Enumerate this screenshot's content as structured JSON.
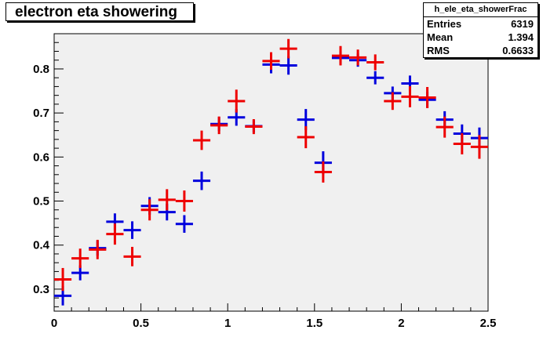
{
  "title": "electron eta showering",
  "stats": {
    "name": "h_ele_eta_showerFrac",
    "rows": [
      {
        "label": "Entries",
        "value": "6319"
      },
      {
        "label": "Mean",
        "value": "1.394"
      },
      {
        "label": "RMS",
        "value": "0.6633"
      }
    ]
  },
  "colors": {
    "frame_bg": "#f0f0f0",
    "series_blue": "#0000dd",
    "series_red": "#ee0000"
  },
  "chart_data": {
    "type": "scatter",
    "title": "electron eta showering",
    "xlabel": "",
    "ylabel": "",
    "xlim": [
      0,
      2.5
    ],
    "ylim": [
      0.25,
      0.88
    ],
    "x_ticks": [
      0,
      0.5,
      1,
      1.5,
      2,
      2.5
    ],
    "x_tick_labels": [
      "0",
      "0.5",
      "1",
      "1.5",
      "2",
      "2.5"
    ],
    "y_ticks": [
      0.3,
      0.4,
      0.5,
      0.6,
      0.7,
      0.8
    ],
    "y_tick_labels": [
      "0.3",
      "0.4",
      "0.5",
      "0.6",
      "0.7",
      "0.8"
    ],
    "grid": false,
    "x_half_width": 0.05,
    "series": [
      {
        "color": "#0000dd",
        "x": [
          0.05,
          0.15,
          0.25,
          0.35,
          0.45,
          0.55,
          0.65,
          0.75,
          0.85,
          0.95,
          1.05,
          1.15,
          1.25,
          1.35,
          1.45,
          1.55,
          1.65,
          1.75,
          1.85,
          1.95,
          2.05,
          2.15,
          2.25,
          2.35,
          2.45
        ],
        "y": [
          0.285,
          0.337,
          0.393,
          0.453,
          0.434,
          0.489,
          0.475,
          0.448,
          0.546,
          0.675,
          0.69,
          0.67,
          0.81,
          0.808,
          0.685,
          0.587,
          0.825,
          0.82,
          0.78,
          0.745,
          0.767,
          0.73,
          0.685,
          0.653,
          0.643
        ],
        "yerr": [
          0.022,
          0.017,
          0.017,
          0.019,
          0.02,
          0.02,
          0.019,
          0.02,
          0.021,
          0.016,
          0.019,
          0.014,
          0.02,
          0.021,
          0.024,
          0.026,
          0.015,
          0.015,
          0.015,
          0.015,
          0.018,
          0.018,
          0.019,
          0.021,
          0.024
        ]
      },
      {
        "color": "#ee0000",
        "x": [
          0.05,
          0.15,
          0.25,
          0.35,
          0.45,
          0.55,
          0.65,
          0.75,
          0.85,
          0.95,
          1.05,
          1.15,
          1.25,
          1.35,
          1.45,
          1.55,
          1.65,
          1.75,
          1.85,
          1.95,
          2.05,
          2.15,
          2.25,
          2.35,
          2.45
        ],
        "y": [
          0.322,
          0.37,
          0.39,
          0.425,
          0.374,
          0.48,
          0.503,
          0.5,
          0.638,
          0.672,
          0.727,
          0.669,
          0.818,
          0.846,
          0.645,
          0.566,
          0.83,
          0.826,
          0.815,
          0.727,
          0.737,
          0.735,
          0.668,
          0.63,
          0.623
        ],
        "yerr": [
          0.026,
          0.022,
          0.022,
          0.024,
          0.022,
          0.024,
          0.024,
          0.024,
          0.022,
          0.02,
          0.026,
          0.017,
          0.02,
          0.022,
          0.025,
          0.024,
          0.022,
          0.018,
          0.018,
          0.02,
          0.024,
          0.024,
          0.024,
          0.024,
          0.027
        ]
      }
    ]
  }
}
